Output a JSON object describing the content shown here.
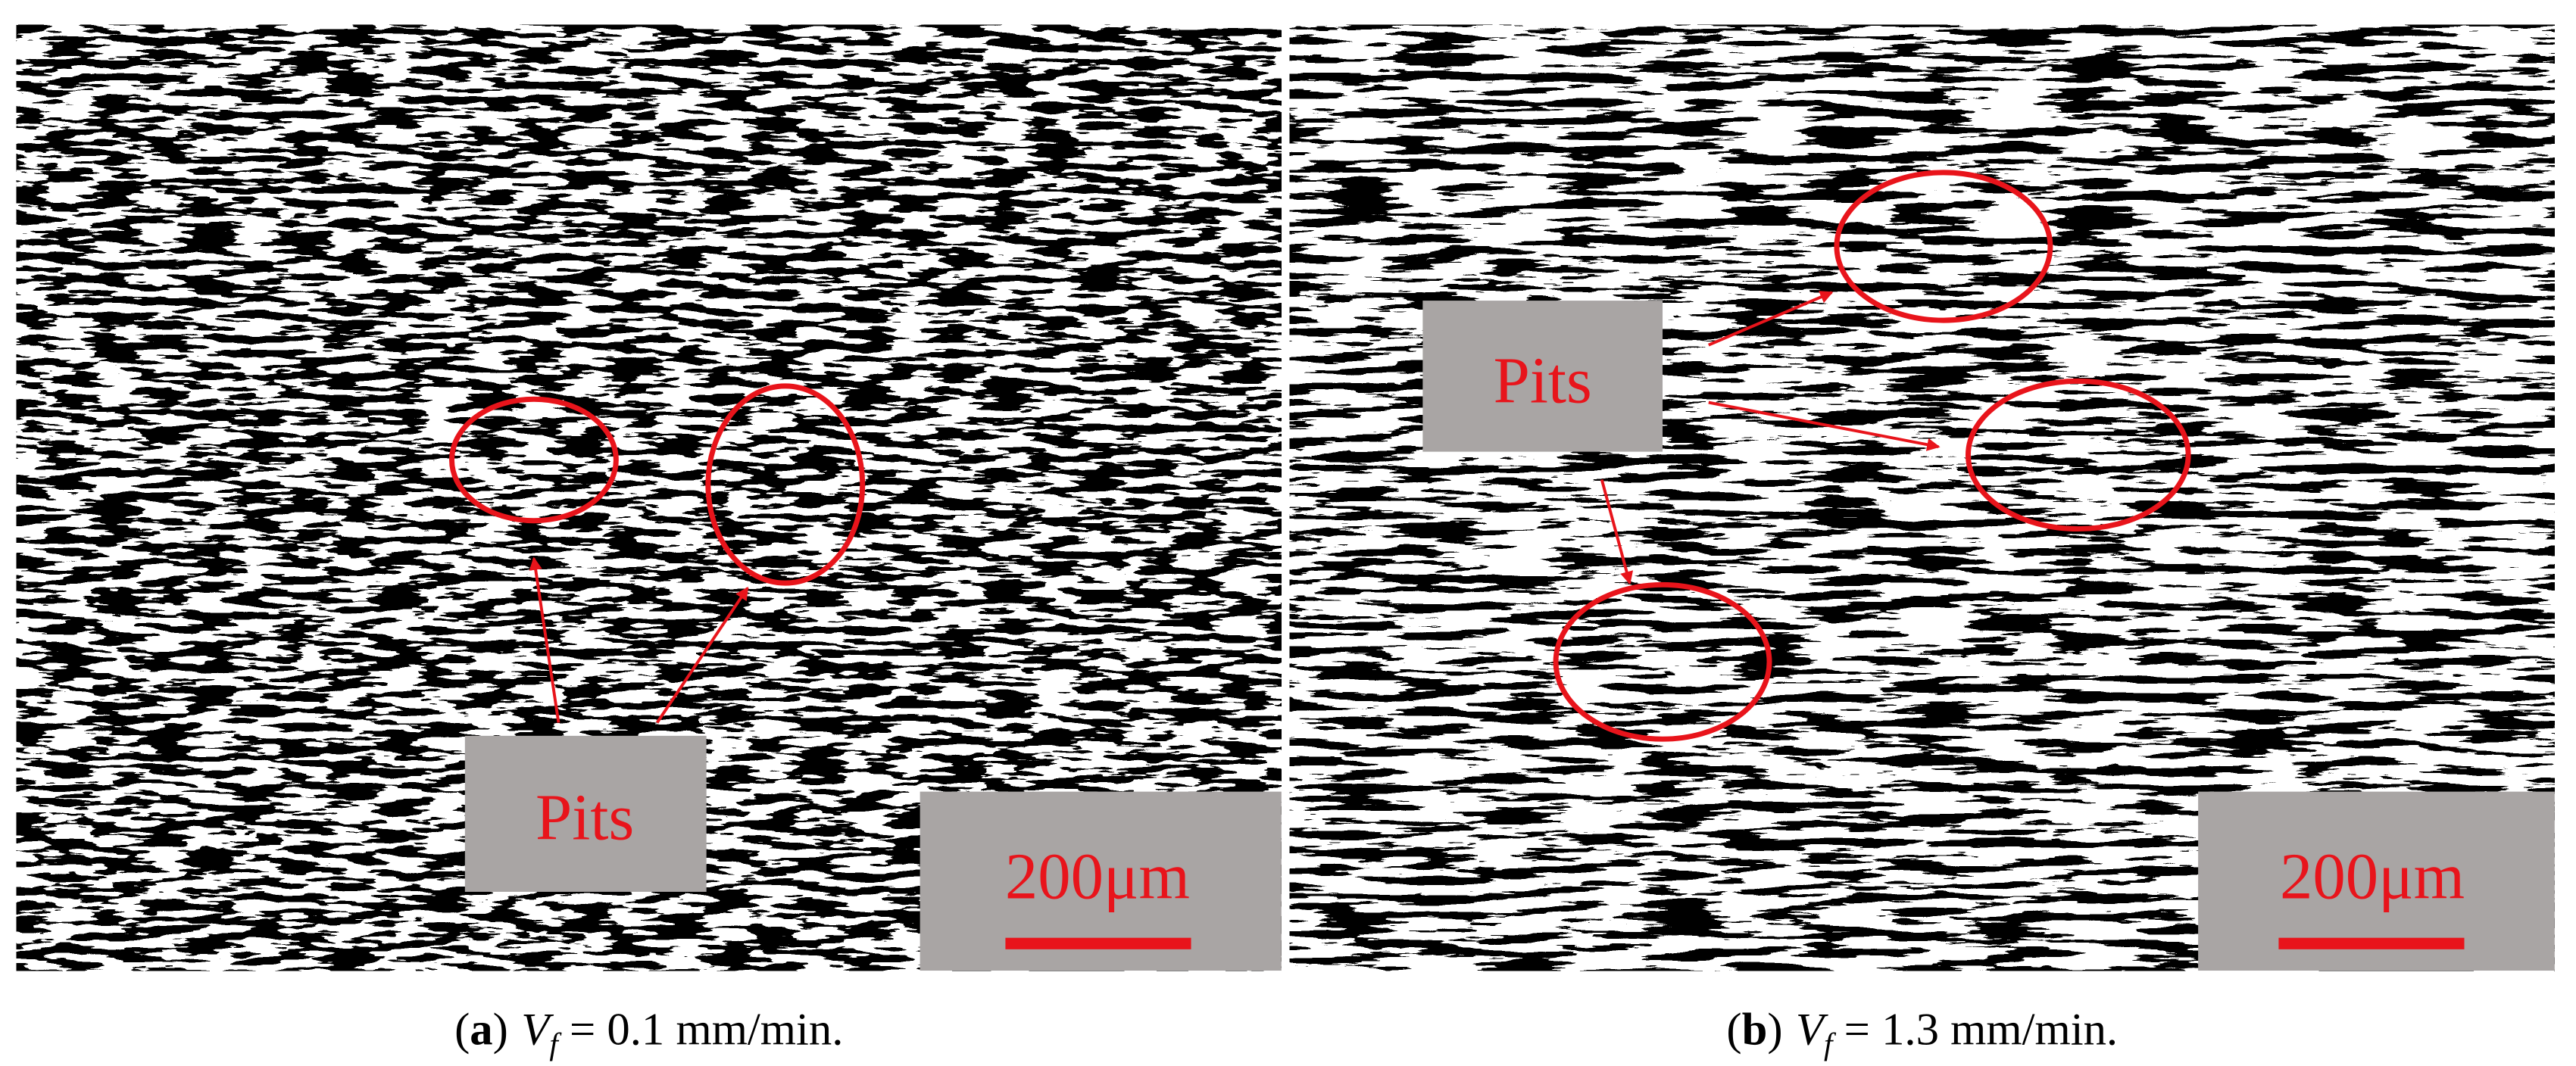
{
  "panels": [
    {
      "pits_label": "Pits",
      "scale_label": "200μm",
      "caption": [
        "(",
        "a",
        ")",
        "V",
        "f",
        " = 0.1 mm/min."
      ]
    },
    {
      "pits_label": "Pits",
      "scale_label": "200μm",
      "caption": [
        "(",
        "b",
        ")",
        "V",
        "f",
        " = 1.3 mm/min."
      ]
    }
  ]
}
